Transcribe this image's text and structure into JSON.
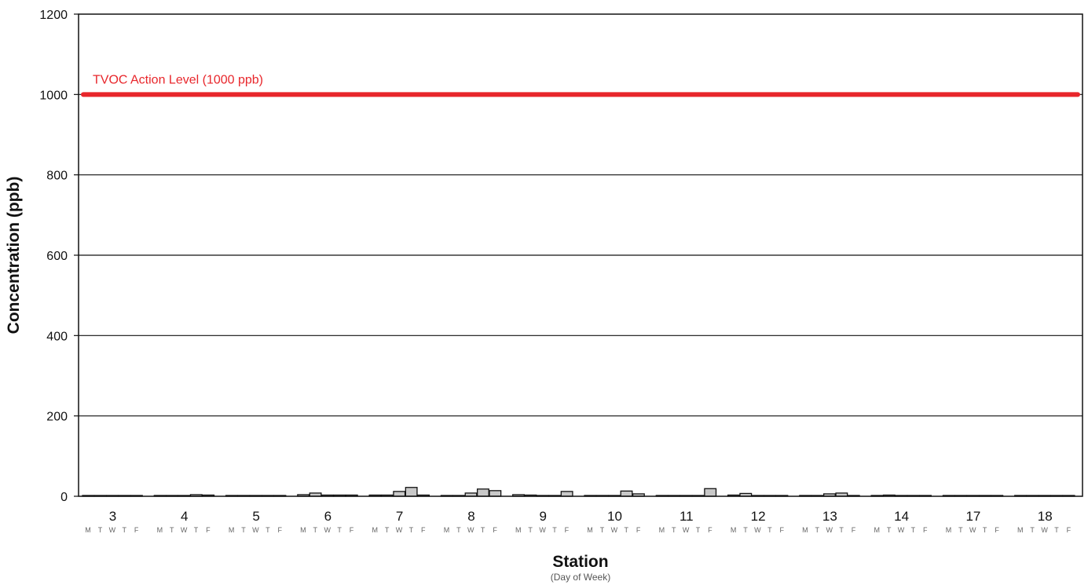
{
  "chart_data": {
    "type": "bar",
    "xlabel": "Station",
    "xlabel_sub": "(Day of Week)",
    "ylabel": "Concentration (ppb)",
    "ylim": [
      0,
      1200
    ],
    "yticks": [
      0,
      200,
      400,
      600,
      800,
      1000,
      1200
    ],
    "grid": true,
    "categories": [
      "3",
      "4",
      "5",
      "6",
      "7",
      "8",
      "9",
      "10",
      "11",
      "12",
      "13",
      "14",
      "17",
      "18"
    ],
    "days": [
      "M",
      "T",
      "W",
      "T",
      "F"
    ],
    "bar_color": "#c8c8c8",
    "values": [
      [
        2,
        2,
        2,
        2,
        2
      ],
      [
        2,
        2,
        2,
        4,
        3
      ],
      [
        2,
        2,
        2,
        2,
        2
      ],
      [
        4,
        8,
        3,
        3,
        3
      ],
      [
        3,
        3,
        12,
        22,
        3
      ],
      [
        2,
        2,
        8,
        18,
        14
      ],
      [
        4,
        3,
        2,
        2,
        12
      ],
      [
        2,
        2,
        2,
        13,
        6
      ],
      [
        2,
        2,
        2,
        2,
        19
      ],
      [
        3,
        7,
        2,
        2,
        2
      ],
      [
        2,
        2,
        6,
        8,
        2
      ],
      [
        2,
        3,
        2,
        2,
        2
      ],
      [
        2,
        2,
        2,
        2,
        2
      ],
      [
        2,
        2,
        2,
        2,
        2
      ]
    ],
    "reference_line": {
      "label": "TVOC Action Level (1000 ppb)",
      "value": 1000,
      "color": "#e8262b"
    }
  }
}
